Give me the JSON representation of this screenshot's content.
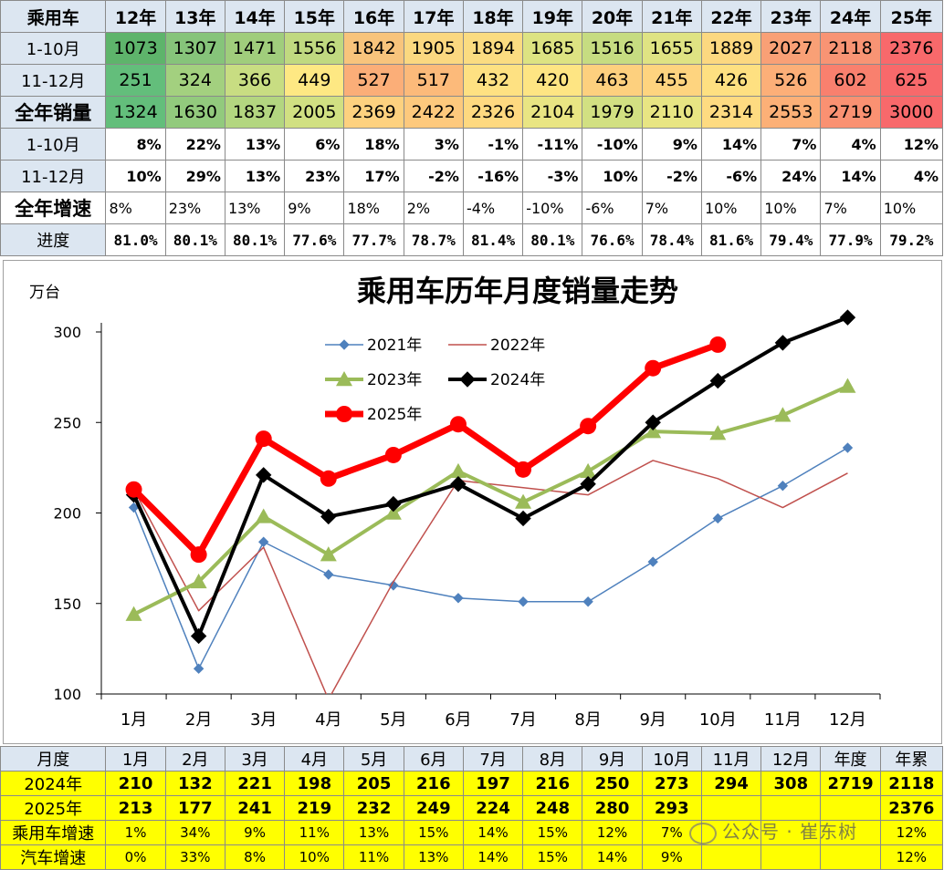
{
  "top_table": {
    "corner": "乘用车",
    "years": [
      "12年",
      "13年",
      "14年",
      "15年",
      "16年",
      "17年",
      "18年",
      "19年",
      "20年",
      "21年",
      "22年",
      "23年",
      "24年",
      "25年"
    ],
    "rows": [
      {
        "label": "1-10月",
        "values": [
          "1073",
          "1307",
          "1471",
          "1556",
          "1842",
          "1905",
          "1894",
          "1685",
          "1516",
          "1655",
          "1889",
          "2027",
          "2118",
          "2376"
        ],
        "colors": [
          "#5eb46b",
          "#86c47a",
          "#a0cd7c",
          "#c0d980",
          "#f8c47c",
          "#fbd880",
          "#fbdc81",
          "#dde382",
          "#c6dc81",
          "#dfe383",
          "#fcd880",
          "#f9a076",
          "#f89474",
          "#f8696b"
        ]
      },
      {
        "label": "11-12月",
        "values": [
          "251",
          "324",
          "366",
          "449",
          "527",
          "517",
          "432",
          "420",
          "463",
          "455",
          "426",
          "526",
          "602",
          "625"
        ],
        "colors": [
          "#63be7b",
          "#a3d07f",
          "#c8dd82",
          "#fee883",
          "#fbae78",
          "#fcba7a",
          "#fee182",
          "#fee583",
          "#fdd07e",
          "#fed47f",
          "#fee081",
          "#fcaf78",
          "#f9806e",
          "#f8696b"
        ]
      },
      {
        "label": "全年销量",
        "values": [
          "1324",
          "1630",
          "1837",
          "2005",
          "2369",
          "2422",
          "2326",
          "2104",
          "1979",
          "2110",
          "2314",
          "2553",
          "2719",
          "3000"
        ],
        "colors": [
          "#63be7b",
          "#92ca7d",
          "#b3d680",
          "#d1e082",
          "#fdd17f",
          "#fdc97d",
          "#fed980",
          "#e9e583",
          "#d2e082",
          "#e8e583",
          "#fedb81",
          "#fcb077",
          "#fa9172",
          "#f8696b"
        ]
      }
    ],
    "growth_rows": [
      {
        "label": "1-10月",
        "values": [
          "8%",
          "22%",
          "13%",
          "6%",
          "18%",
          "3%",
          "-1%",
          "-11%",
          "-10%",
          "9%",
          "14%",
          "7%",
          "4%",
          "12%"
        ]
      },
      {
        "label": "11-12月",
        "values": [
          "10%",
          "29%",
          "13%",
          "23%",
          "17%",
          "-2%",
          "-16%",
          "-3%",
          "10%",
          "-2%",
          "-6%",
          "24%",
          "14%",
          "4%"
        ]
      },
      {
        "label": "全年增速",
        "values": [
          "8%",
          "23%",
          "13%",
          "9%",
          "18%",
          "2%",
          "-4%",
          "-10%",
          "-6%",
          "7%",
          "10%",
          "10%",
          "7%",
          "10%"
        ]
      }
    ],
    "progress_row": {
      "label": "进度",
      "values": [
        "81.0%",
        "80.1%",
        "80.1%",
        "77.6%",
        "77.7%",
        "78.7%",
        "81.4%",
        "80.1%",
        "76.6%",
        "78.4%",
        "81.6%",
        "79.4%",
        "77.9%",
        "79.2%"
      ]
    }
  },
  "chart_data": {
    "type": "line",
    "title": "乘用车历年月度销量走势",
    "ylabel": "万台",
    "ylim": [
      100,
      300
    ],
    "yticks": [
      100,
      150,
      200,
      250,
      300
    ],
    "categories": [
      "1月",
      "2月",
      "3月",
      "4月",
      "5月",
      "6月",
      "7月",
      "8月",
      "9月",
      "10月",
      "11月",
      "12月"
    ],
    "legend_position": "top-center",
    "series": [
      {
        "name": "2021年",
        "color": "#4f81bd",
        "width": 1.5,
        "marker": "diamond",
        "marker_size": 5,
        "values": [
          203,
          114,
          184,
          166,
          160,
          153,
          151,
          151,
          173,
          197,
          215,
          236
        ]
      },
      {
        "name": "2022年",
        "color": "#c0504d",
        "width": 1.5,
        "marker": "none",
        "marker_size": 0,
        "values": [
          213,
          146,
          181,
          97,
          162,
          218,
          214,
          210,
          229,
          219,
          203,
          222
        ]
      },
      {
        "name": "2023年",
        "color": "#9bbb59",
        "width": 4,
        "marker": "triangle",
        "marker_size": 9,
        "values": [
          144,
          162,
          198,
          177,
          200,
          223,
          206,
          223,
          245,
          244,
          254,
          270
        ]
      },
      {
        "name": "2024年",
        "color": "#000000",
        "width": 4,
        "marker": "diamond",
        "marker_size": 8,
        "values": [
          210,
          132,
          221,
          198,
          205,
          216,
          197,
          216,
          250,
          273,
          294,
          308
        ]
      },
      {
        "name": "2025年",
        "color": "#ff0000",
        "width": 7,
        "marker": "circle",
        "marker_size": 9,
        "values": [
          213,
          177,
          241,
          219,
          232,
          249,
          224,
          248,
          280,
          293,
          null,
          null
        ]
      }
    ]
  },
  "bottom_table": {
    "header": [
      "月度",
      "1月",
      "2月",
      "3月",
      "4月",
      "5月",
      "6月",
      "7月",
      "8月",
      "9月",
      "10月",
      "11月",
      "12月",
      "年度",
      "年累"
    ],
    "rows": [
      {
        "label": "2024年",
        "values": [
          "210",
          "132",
          "221",
          "198",
          "205",
          "216",
          "197",
          "216",
          "250",
          "273",
          "294",
          "308",
          "2719",
          "2118"
        ]
      },
      {
        "label": "2025年",
        "values": [
          "213",
          "177",
          "241",
          "219",
          "232",
          "249",
          "224",
          "248",
          "280",
          "293",
          "",
          "",
          "",
          "2376"
        ]
      },
      {
        "label": "乘用车增速",
        "values": [
          "1%",
          "34%",
          "9%",
          "11%",
          "13%",
          "15%",
          "14%",
          "15%",
          "12%",
          "7%",
          "",
          "",
          "",
          "12%"
        ]
      },
      {
        "label": "汽车增速",
        "values": [
          "0%",
          "33%",
          "8%",
          "10%",
          "11%",
          "13%",
          "14%",
          "15%",
          "14%",
          "9%",
          "",
          "",
          "",
          "12%"
        ]
      }
    ]
  },
  "watermark": "公众号 · 崔东树"
}
